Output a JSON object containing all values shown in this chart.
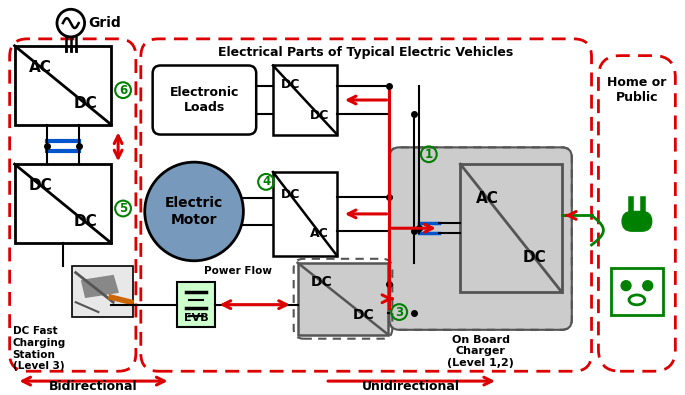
{
  "title": "Electrical Parts of Typical Electric Vehicles",
  "bg_color": "#ffffff",
  "red_color": "#dd0000",
  "green_color": "#008000",
  "blue_color": "#0055cc",
  "gray_color": "#aaaaaa",
  "dark_gray": "#555555",
  "figsize": [
    6.85,
    3.95
  ],
  "dpi": 100,
  "bottom_bidirectional": "Bidirectional",
  "bottom_unidirectional": "Unidirectional"
}
